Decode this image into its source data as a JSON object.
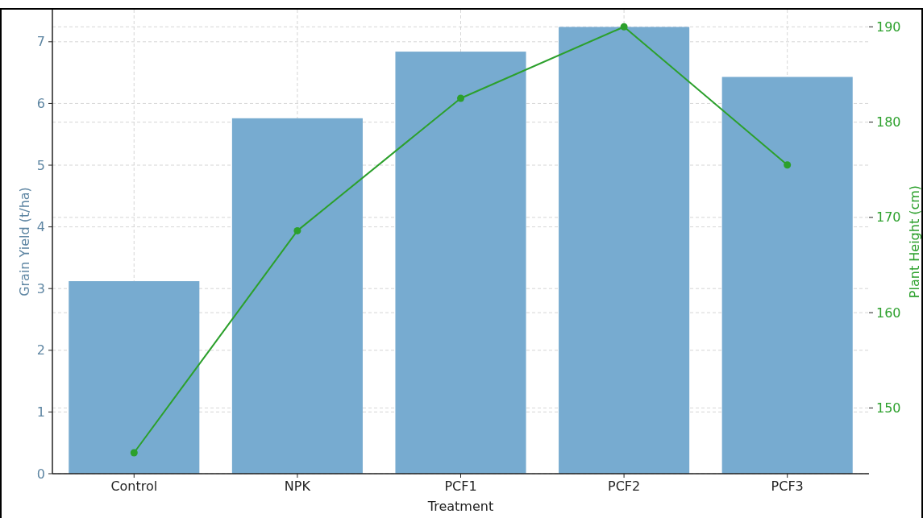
{
  "chart_data": {
    "type": "bar",
    "xlabel": "Treatment",
    "ylabel": "Grain Yield (t/ha)",
    "y2label": "Plant Height (cm)",
    "categories": [
      "Control",
      "NPK",
      "PCF1",
      "PCF2",
      "PCF3"
    ],
    "series": [
      {
        "color": "#77abd0",
        "values": [
          3.12,
          5.76,
          6.84,
          7.24,
          6.43
        ]
      },
      {
        "type": "line",
        "axis": "y2",
        "color": "#2ca02c",
        "values": [
          145.3,
          168.6,
          182.5,
          190.0,
          175.5
        ]
      }
    ],
    "ylim": [
      0,
      7.52
    ],
    "yticks": [
      0,
      1,
      2,
      3,
      4,
      5,
      6,
      7
    ],
    "y2lim": [
      143.1,
      191.8
    ],
    "y2ticks": [
      150,
      160,
      170,
      180,
      190
    ],
    "grid": true,
    "marker": "circle",
    "line_style": "solid"
  }
}
